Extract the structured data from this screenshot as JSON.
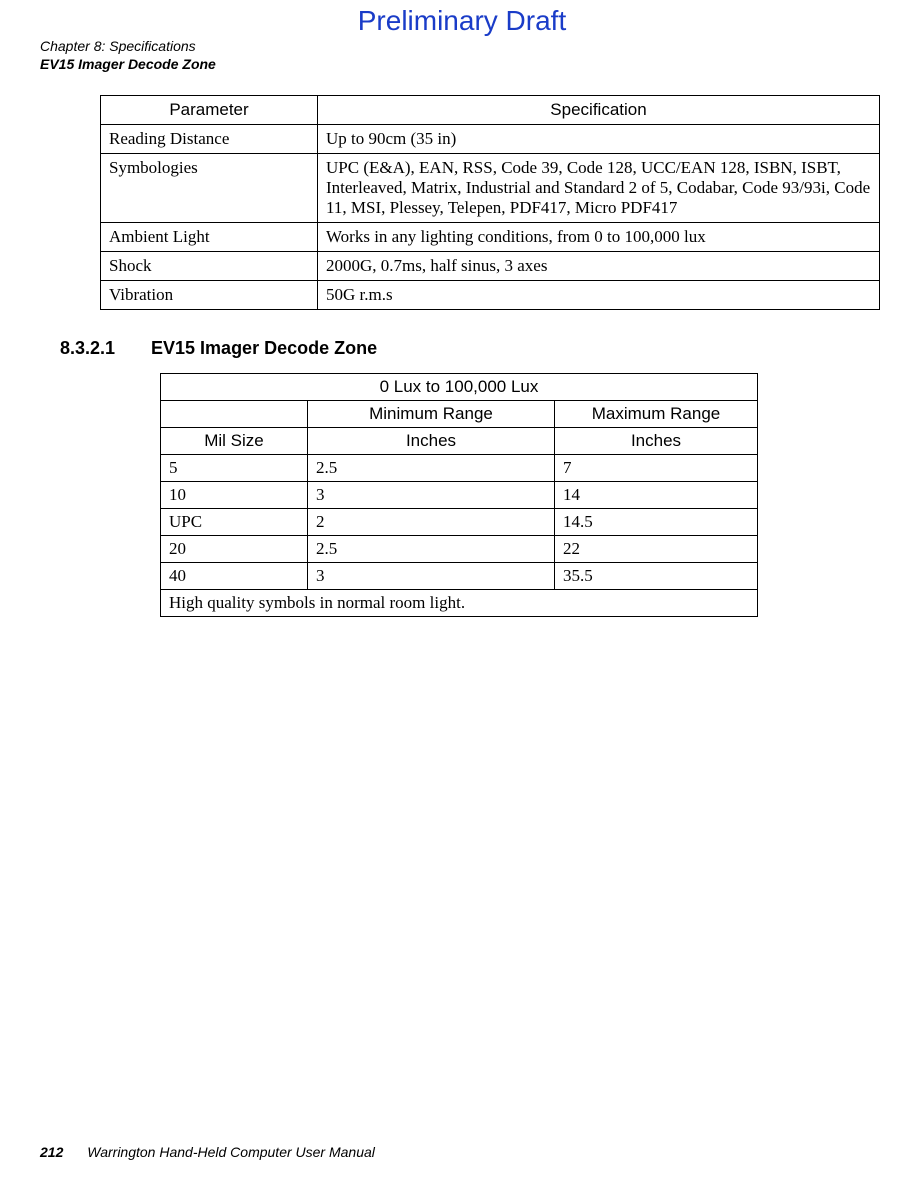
{
  "watermark": "Preliminary Draft",
  "running_head": {
    "line1": "Chapter 8: Specifications",
    "line2": "EV15 Imager Decode Zone"
  },
  "spec_table": {
    "headers": {
      "param": "Parameter",
      "spec": "Specification"
    },
    "rows": [
      {
        "param": "Reading Distance",
        "spec": "Up to 90cm (35 in)"
      },
      {
        "param": "Symbologies",
        "spec": "UPC (E&A), EAN, RSS, Code 39, Code 128, UCC/EAN 128, ISBN, ISBT, Interleaved, Matrix, Industrial and Standard 2 of 5, Codabar, Code 93/93i, Code 11, MSI, Plessey, Telepen, PDF417, Micro PDF417"
      },
      {
        "param": "Ambient Light",
        "spec": "Works in any lighting conditions, from 0 to 100,000 lux"
      },
      {
        "param": "Shock",
        "spec": "2000G, 0.7ms, half sinus, 3 axes"
      },
      {
        "param": "Vibration",
        "spec": "50G r.m.s"
      }
    ]
  },
  "section": {
    "number": "8.3.2.1",
    "title": "EV15 Imager Decode Zone"
  },
  "decode_table": {
    "title": "0 Lux to 100,000 Lux",
    "sub_headers": {
      "min": "Minimum Range",
      "max": "Maximum Range"
    },
    "unit_headers": {
      "mil": "Mil Size",
      "min_unit": "Inches",
      "max_unit": "Inches"
    },
    "rows": [
      {
        "mil": "5",
        "min": "2.5",
        "max": "7"
      },
      {
        "mil": "10",
        "min": "3",
        "max": "14"
      },
      {
        "mil": "UPC",
        "min": "2",
        "max": "14.5"
      },
      {
        "mil": "20",
        "min": "2.5",
        "max": "22"
      },
      {
        "mil": "40",
        "min": "3",
        "max": "35.5"
      }
    ],
    "footer": "High quality symbols in normal room light."
  },
  "page_footer": {
    "page_number": "212",
    "title": "Warrington Hand-Held Computer User Manual"
  }
}
